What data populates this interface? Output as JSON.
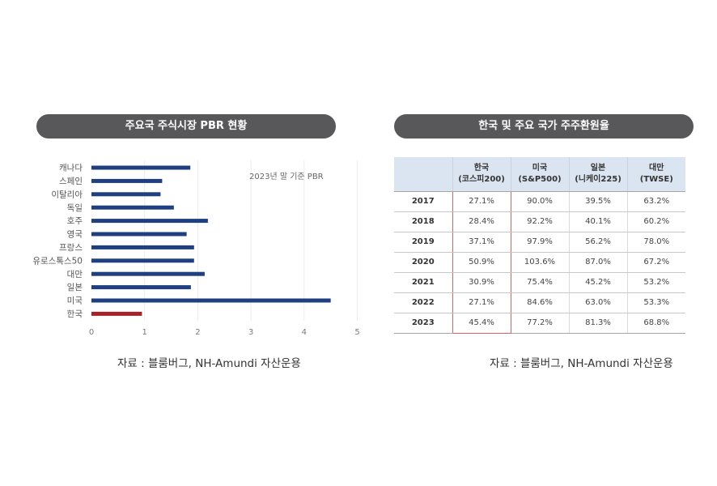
{
  "left_panel": {
    "title": "주요국 주식시장 PBR 현황",
    "source": "자료 : 블룸버그, NH-Amundi 자산운용"
  },
  "right_panel": {
    "title": "한국 및 주요 국가 주주환원율",
    "source": "자료 : 블룸버그, NH-Amundi 자산운용"
  },
  "colors": {
    "bar": "#1f3f80",
    "highlight": "#a62327",
    "pill": "#58585a",
    "header_bg": "#dbe5f1"
  },
  "chart_data": [
    {
      "type": "bar",
      "orientation": "horizontal",
      "title": "주요국 주식시장 PBR 현황",
      "annotation": "2023년 말 기준 PBR",
      "categories": [
        "캐나다",
        "스페인",
        "이탈리아",
        "독일",
        "호주",
        "영국",
        "프랑스",
        "유로스톡스50",
        "대만",
        "일본",
        "미국",
        "한국"
      ],
      "values": [
        1.86,
        1.33,
        1.3,
        1.55,
        2.19,
        1.79,
        1.93,
        1.93,
        2.13,
        1.87,
        4.5,
        0.95
      ],
      "highlight": "한국",
      "xlim": [
        0,
        5
      ],
      "xticks": [
        "0",
        "1",
        "2",
        "3",
        "4",
        "5"
      ],
      "grid": true
    },
    {
      "type": "table",
      "title": "한국 및 주요 국가 주주환원율",
      "columns": [
        {
          "line1": "",
          "line2": ""
        },
        {
          "line1": "한국",
          "line2": "(코스피200)"
        },
        {
          "line1": "미국",
          "line2": "(S&P500)"
        },
        {
          "line1": "일본",
          "line2": "(니케이225)"
        },
        {
          "line1": "대만",
          "line2": "(TWSE)"
        }
      ],
      "rows": [
        [
          "2017",
          "27.1%",
          "90.0%",
          "39.5%",
          "63.2%"
        ],
        [
          "2018",
          "28.4%",
          "92.2%",
          "40.1%",
          "60.2%"
        ],
        [
          "2019",
          "37.1%",
          "97.9%",
          "56.2%",
          "78.0%"
        ],
        [
          "2020",
          "50.9%",
          "103.6%",
          "87.0%",
          "67.2%"
        ],
        [
          "2021",
          "30.9%",
          "75.4%",
          "45.2%",
          "53.2%"
        ],
        [
          "2022",
          "27.1%",
          "84.6%",
          "63.0%",
          "53.3%"
        ],
        [
          "2023",
          "45.4%",
          "77.2%",
          "81.3%",
          "68.8%"
        ]
      ]
    }
  ]
}
